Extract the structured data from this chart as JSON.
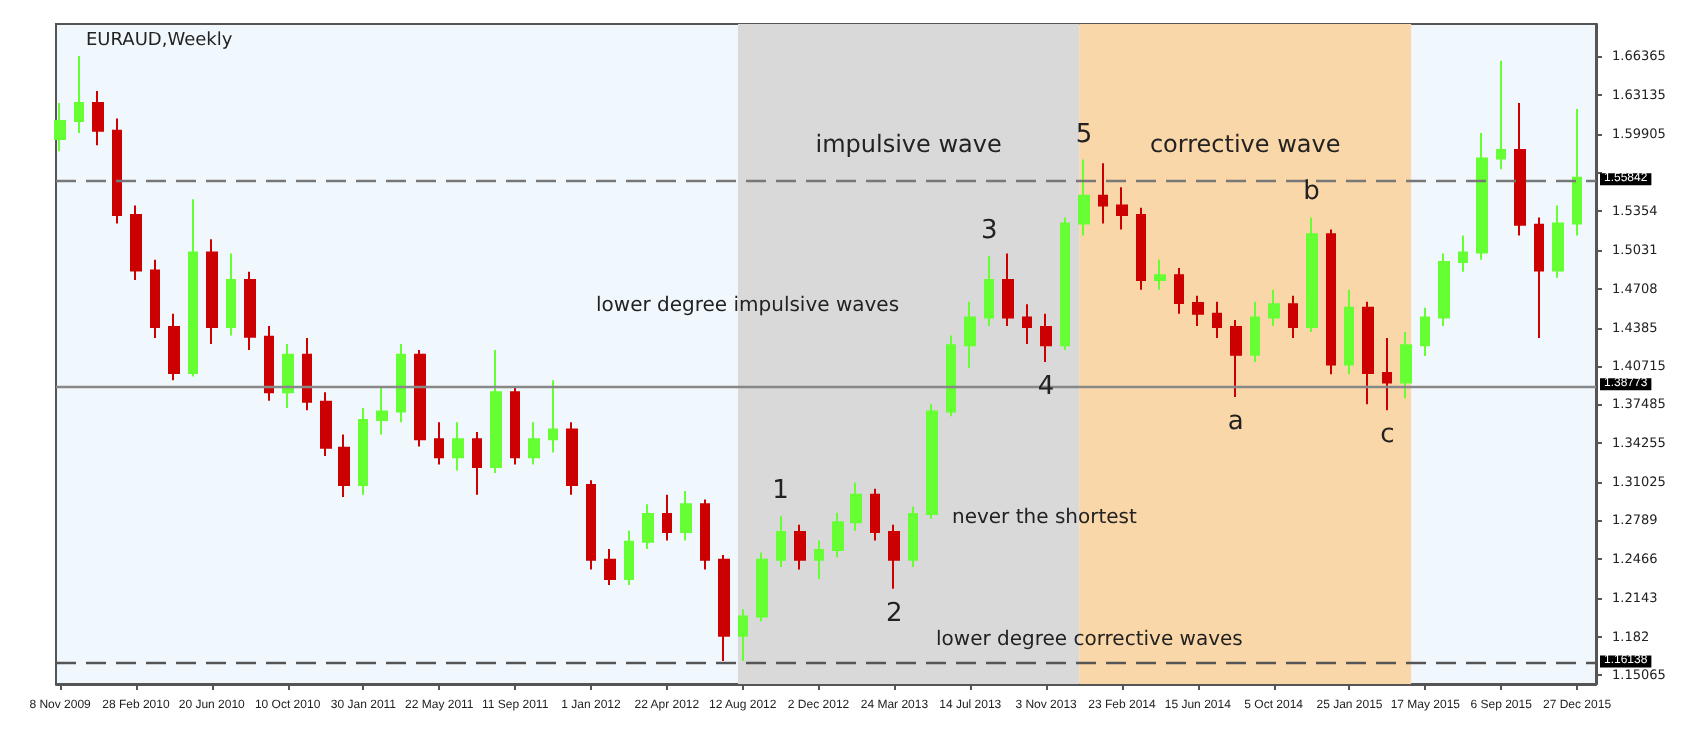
{
  "chart_data": {
    "type": "candlestick",
    "title": "EURAUD,Weekly",
    "x": [
      "2009-11-08",
      "2009-12-06",
      "2010-01-03",
      "2010-01-31",
      "2010-02-28",
      "2010-03-28",
      "2010-04-25",
      "2010-05-23",
      "2010-06-20",
      "2010-07-18",
      "2010-08-15",
      "2010-09-12",
      "2010-10-10",
      "2010-11-07",
      "2010-12-05",
      "2011-01-02",
      "2011-01-30",
      "2011-02-27",
      "2011-03-27",
      "2011-04-24",
      "2011-05-22",
      "2011-06-19",
      "2011-07-17",
      "2011-08-14",
      "2011-09-11",
      "2011-10-09",
      "2011-11-06",
      "2011-12-04",
      "2012-01-01",
      "2012-01-29",
      "2012-02-26",
      "2012-03-25",
      "2012-04-22",
      "2012-05-20",
      "2012-06-17",
      "2012-07-15",
      "2012-08-12",
      "2012-09-09",
      "2012-10-07",
      "2012-11-04",
      "2012-12-02",
      "2012-12-30",
      "2013-01-27",
      "2013-02-24",
      "2013-03-24",
      "2013-04-21",
      "2013-05-19",
      "2013-06-16",
      "2013-07-14",
      "2013-08-11",
      "2013-09-08",
      "2013-10-06",
      "2013-11-03",
      "2013-12-01",
      "2013-12-29",
      "2014-01-26",
      "2014-02-23",
      "2014-03-23",
      "2014-04-20",
      "2014-05-18",
      "2014-06-15",
      "2014-07-13",
      "2014-08-10",
      "2014-09-07",
      "2014-10-05",
      "2014-11-02",
      "2014-11-30",
      "2014-12-28",
      "2015-01-25",
      "2015-02-22",
      "2015-03-22",
      "2015-04-19",
      "2015-05-17",
      "2015-06-14",
      "2015-07-12",
      "2015-08-09",
      "2015-09-06",
      "2015-10-04",
      "2015-11-01",
      "2015-11-29",
      "2015-12-27"
    ],
    "ohlc": [
      [
        1.595,
        1.625,
        1.585,
        1.61
      ],
      [
        1.61,
        1.664,
        1.6,
        1.625
      ],
      [
        1.625,
        1.635,
        1.59,
        1.602
      ],
      [
        1.602,
        1.612,
        1.525,
        1.532
      ],
      [
        1.532,
        1.54,
        1.478,
        1.486
      ],
      [
        1.486,
        1.495,
        1.43,
        1.439
      ],
      [
        1.439,
        1.45,
        1.395,
        1.401
      ],
      [
        1.401,
        1.545,
        1.398,
        1.501
      ],
      [
        1.501,
        1.512,
        1.425,
        1.439
      ],
      [
        1.439,
        1.5,
        1.432,
        1.478
      ],
      [
        1.478,
        1.485,
        1.42,
        1.431
      ],
      [
        1.431,
        1.44,
        1.378,
        1.385
      ],
      [
        1.385,
        1.425,
        1.372,
        1.416
      ],
      [
        1.416,
        1.43,
        1.37,
        1.377
      ],
      [
        1.377,
        1.385,
        1.332,
        1.339
      ],
      [
        1.339,
        1.35,
        1.298,
        1.308
      ],
      [
        1.308,
        1.372,
        1.3,
        1.362
      ],
      [
        1.362,
        1.39,
        1.35,
        1.369
      ],
      [
        1.369,
        1.425,
        1.36,
        1.416
      ],
      [
        1.416,
        1.42,
        1.34,
        1.346
      ],
      [
        1.346,
        1.36,
        1.325,
        1.331
      ],
      [
        1.331,
        1.36,
        1.32,
        1.346
      ],
      [
        1.346,
        1.352,
        1.3,
        1.323
      ],
      [
        1.323,
        1.42,
        1.318,
        1.385
      ],
      [
        1.385,
        1.39,
        1.325,
        1.331
      ],
      [
        1.331,
        1.36,
        1.325,
        1.346
      ],
      [
        1.346,
        1.395,
        1.335,
        1.354
      ],
      [
        1.354,
        1.36,
        1.3,
        1.308
      ],
      [
        1.308,
        1.312,
        1.238,
        1.246
      ],
      [
        1.246,
        1.255,
        1.225,
        1.23
      ],
      [
        1.23,
        1.27,
        1.225,
        1.261
      ],
      [
        1.261,
        1.292,
        1.255,
        1.284
      ],
      [
        1.284,
        1.3,
        1.262,
        1.269
      ],
      [
        1.269,
        1.303,
        1.262,
        1.292
      ],
      [
        1.292,
        1.296,
        1.238,
        1.246
      ],
      [
        1.246,
        1.25,
        1.162,
        1.183
      ],
      [
        1.183,
        1.205,
        1.162,
        1.199
      ],
      [
        1.199,
        1.252,
        1.195,
        1.246
      ],
      [
        1.246,
        1.282,
        1.24,
        1.269
      ],
      [
        1.269,
        1.275,
        1.238,
        1.246
      ],
      [
        1.246,
        1.262,
        1.23,
        1.254
      ],
      [
        1.254,
        1.285,
        1.248,
        1.277
      ],
      [
        1.277,
        1.31,
        1.27,
        1.3
      ],
      [
        1.3,
        1.305,
        1.262,
        1.269
      ],
      [
        1.269,
        1.275,
        1.222,
        1.246
      ],
      [
        1.246,
        1.29,
        1.24,
        1.284
      ],
      [
        1.284,
        1.375,
        1.28,
        1.369
      ],
      [
        1.369,
        1.432,
        1.365,
        1.424
      ],
      [
        1.424,
        1.46,
        1.405,
        1.447
      ],
      [
        1.447,
        1.498,
        1.44,
        1.478
      ],
      [
        1.478,
        1.5,
        1.44,
        1.447
      ],
      [
        1.447,
        1.458,
        1.425,
        1.439
      ],
      [
        1.439,
        1.45,
        1.41,
        1.424
      ],
      [
        1.424,
        1.53,
        1.42,
        1.525
      ],
      [
        1.525,
        1.578,
        1.515,
        1.548
      ],
      [
        1.548,
        1.575,
        1.525,
        1.54
      ],
      [
        1.54,
        1.555,
        1.52,
        1.532
      ],
      [
        1.532,
        1.538,
        1.47,
        1.478
      ],
      [
        1.478,
        1.495,
        1.47,
        1.482
      ],
      [
        1.482,
        1.488,
        1.45,
        1.459
      ],
      [
        1.459,
        1.465,
        1.44,
        1.45
      ],
      [
        1.45,
        1.46,
        1.43,
        1.439
      ],
      [
        1.439,
        1.445,
        1.381,
        1.416
      ],
      [
        1.416,
        1.46,
        1.41,
        1.447
      ],
      [
        1.447,
        1.47,
        1.44,
        1.458
      ],
      [
        1.458,
        1.465,
        1.43,
        1.439
      ],
      [
        1.439,
        1.53,
        1.435,
        1.516
      ],
      [
        1.516,
        1.52,
        1.4,
        1.408
      ],
      [
        1.408,
        1.47,
        1.4,
        1.455
      ],
      [
        1.455,
        1.46,
        1.375,
        1.401
      ],
      [
        1.401,
        1.43,
        1.37,
        1.393
      ],
      [
        1.393,
        1.435,
        1.38,
        1.424
      ],
      [
        1.424,
        1.455,
        1.415,
        1.447
      ],
      [
        1.447,
        1.5,
        1.44,
        1.493
      ],
      [
        1.493,
        1.515,
        1.485,
        1.501
      ],
      [
        1.501,
        1.6,
        1.495,
        1.579
      ],
      [
        1.579,
        1.66,
        1.57,
        1.586
      ],
      [
        1.586,
        1.625,
        1.515,
        1.524
      ],
      [
        1.524,
        1.53,
        1.43,
        1.486
      ],
      [
        1.486,
        1.54,
        1.48,
        1.525
      ],
      [
        1.525,
        1.62,
        1.515,
        1.563
      ]
    ],
    "colors": [
      "#66ff33",
      "#66ff33",
      "#cc0000",
      "#cc0000",
      "#cc0000",
      "#cc0000",
      "#cc0000",
      "#66ff33",
      "#cc0000",
      "#66ff33",
      "#cc0000",
      "#cc0000",
      "#66ff33",
      "#cc0000",
      "#cc0000",
      "#cc0000",
      "#66ff33",
      "#66ff33",
      "#66ff33",
      "#cc0000",
      "#cc0000",
      "#66ff33",
      "#cc0000",
      "#66ff33",
      "#cc0000",
      "#66ff33",
      "#66ff33",
      "#cc0000",
      "#cc0000",
      "#cc0000",
      "#66ff33",
      "#66ff33",
      "#cc0000",
      "#66ff33",
      "#cc0000",
      "#cc0000",
      "#66ff33",
      "#66ff33",
      "#66ff33",
      "#cc0000",
      "#66ff33",
      "#66ff33",
      "#66ff33",
      "#cc0000",
      "#cc0000",
      "#66ff33",
      "#66ff33",
      "#66ff33",
      "#66ff33",
      "#66ff33",
      "#cc0000",
      "#cc0000",
      "#cc0000",
      "#66ff33",
      "#66ff33",
      "#cc0000",
      "#cc0000",
      "#cc0000",
      "#66ff33",
      "#cc0000",
      "#cc0000",
      "#cc0000",
      "#cc0000",
      "#66ff33",
      "#66ff33",
      "#cc0000",
      "#66ff33",
      "#cc0000",
      "#66ff33",
      "#cc0000",
      "#cc0000",
      "#66ff33",
      "#66ff33",
      "#66ff33",
      "#66ff33",
      "#66ff33",
      "#66ff33",
      "#cc0000",
      "#cc0000",
      "#66ff33",
      "#66ff33"
    ],
    "xlim": [
      "2009-11-02",
      "2016-01-24"
    ],
    "xticks": [
      {
        "value": "2009-11-08",
        "label": "8 Nov 2009"
      },
      {
        "value": "2010-02-28",
        "label": "28 Feb 2010"
      },
      {
        "value": "2010-06-20",
        "label": "20 Jun 2010"
      },
      {
        "value": "2010-10-10",
        "label": "10 Oct 2010"
      },
      {
        "value": "2011-01-30",
        "label": "30 Jan 2011"
      },
      {
        "value": "2011-05-22",
        "label": "22 May 2011"
      },
      {
        "value": "2011-09-11",
        "label": "11 Sep 2011"
      },
      {
        "value": "2012-01-01",
        "label": "1 Jan 2012"
      },
      {
        "value": "2012-04-22",
        "label": "22 Apr 2012"
      },
      {
        "value": "2012-08-12",
        "label": "12 Aug 2012"
      },
      {
        "value": "2012-12-02",
        "label": "2 Dec 2012"
      },
      {
        "value": "2013-03-24",
        "label": "24 Mar 2013"
      },
      {
        "value": "2013-07-14",
        "label": "14 Jul 2013"
      },
      {
        "value": "2013-11-03",
        "label": "3 Nov 2013"
      },
      {
        "value": "2014-02-23",
        "label": "23 Feb 2014"
      },
      {
        "value": "2014-06-15",
        "label": "15 Jun 2014"
      },
      {
        "value": "2014-10-05",
        "label": "5 Oct 2014"
      },
      {
        "value": "2015-01-25",
        "label": "25 Jan 2015"
      },
      {
        "value": "2015-05-17",
        "label": "17 May 2015"
      },
      {
        "value": "2015-09-06",
        "label": "6 Sep 2015"
      },
      {
        "value": "2015-12-27",
        "label": "27 Dec 2015"
      }
    ],
    "ylim": [
      1.1429,
      1.6905
    ],
    "yticks": [
      1.15065,
      1.182,
      1.2143,
      1.2466,
      1.2789,
      1.31025,
      1.34255,
      1.37485,
      1.40715,
      1.4385,
      1.4708,
      1.5031,
      1.5354,
      {
        "value": 1.56675,
        "label": null
      },
      1.59905,
      1.63135,
      1.66365
    ],
    "ref_lines": [
      {
        "axis": "y",
        "value": 1.55842,
        "label": "1.55842",
        "line_style": "dashed",
        "color": "#777777"
      },
      {
        "axis": "y",
        "value": 1.38773,
        "label": "1.38773",
        "line_style": "solid",
        "color": "#888888"
      },
      {
        "axis": "y",
        "value": 1.16138,
        "label": "1.16138",
        "line_style": "dashed",
        "color": "#555555"
      }
    ],
    "bands": [
      {
        "axis": "x",
        "from": "2012-08-05",
        "to": "2013-12-22",
        "label": "impulsive wave",
        "color": "#d9d9d9"
      },
      {
        "axis": "x",
        "from": "2013-12-22",
        "to": "2015-04-26",
        "label": "corrective wave",
        "color": "#fad7a8"
      }
    ],
    "annotations": [
      {
        "text": "1",
        "x": "2012-10-07",
        "y": 1.282
      },
      {
        "text": "2",
        "x": "2013-03-24",
        "y": 1.222
      },
      {
        "text": "3",
        "x": "2013-08-11",
        "y": 1.498
      },
      {
        "text": "4",
        "x": "2013-11-03",
        "y": 1.41
      },
      {
        "text": "5",
        "x": "2013-12-29",
        "y": 1.578
      },
      {
        "text": "a",
        "x": "2014-08-10",
        "y": 1.381
      },
      {
        "text": "b",
        "x": "2014-11-30",
        "y": 1.53
      },
      {
        "text": "c",
        "x": "2015-03-22",
        "y": 1.37
      },
      "lower degree impulsive waves",
      "never the shortest",
      "lower degree corrective waves"
    ]
  }
}
